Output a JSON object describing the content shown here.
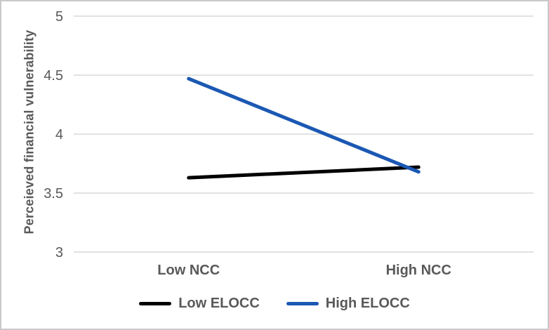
{
  "chart_data": {
    "type": "line",
    "title": "",
    "xlabel": "",
    "ylabel": "Perceieved financial vulnerability",
    "categories": [
      "Low NCC",
      "High NCC"
    ],
    "series": [
      {
        "name": "Low ELOCC",
        "color": "#000000",
        "values": [
          3.63,
          3.72
        ]
      },
      {
        "name": "High ELOCC",
        "color": "#1B58B3",
        "values": [
          4.47,
          3.68
        ]
      }
    ],
    "ylim": [
      3,
      5
    ],
    "yticks": [
      3,
      3.5,
      4,
      4.5,
      5
    ],
    "grid": true,
    "legend_position": "bottom",
    "colors": {
      "gridline": "#D9D9D9",
      "text": "#595959",
      "frame_border": "#C9C9C9",
      "background": "#FFFFFF"
    }
  }
}
